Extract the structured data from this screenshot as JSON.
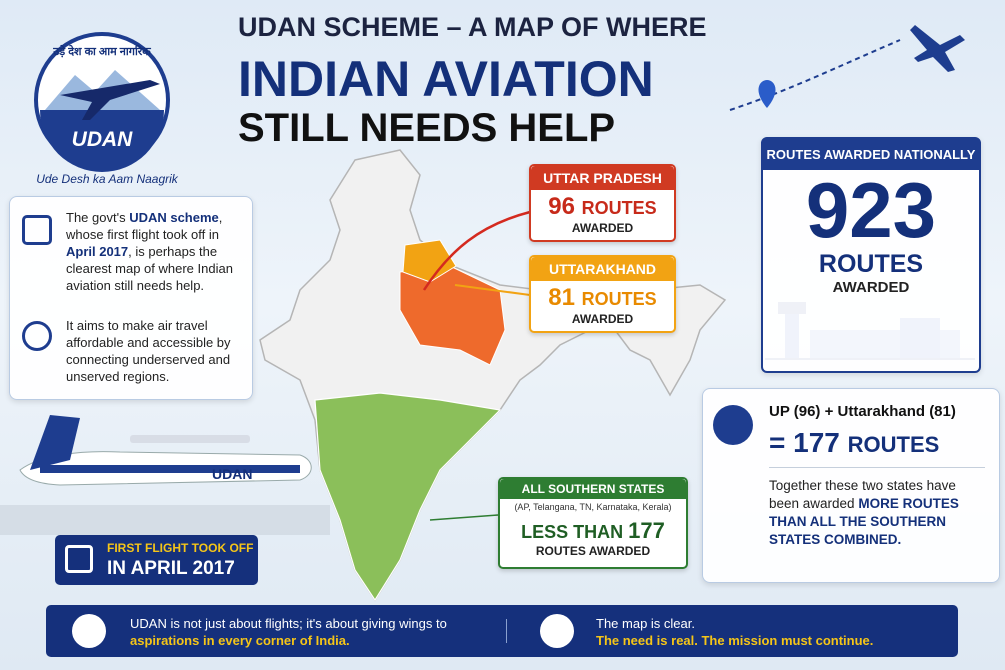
{
  "logo": {
    "hindi": "उड़े देश का आम नागरिक",
    "name": "UDAN",
    "tagline": "Ude Desh ka Aam Naagrik"
  },
  "title": {
    "line1": "UDAN SCHEME – A MAP OF WHERE",
    "line2": "INDIAN AVIATION",
    "line3": "STILL NEEDS HELP"
  },
  "intro": {
    "p1": [
      "The govt's ",
      "UDAN scheme",
      ", whose first flight took off in ",
      "April 2017",
      ", is perhaps the clearest map of where Indian aviation still needs help."
    ],
    "p2": "It aims to make air travel affordable and accessible by connecting underserved and unserved regions."
  },
  "plane_livery": "UDAN",
  "first_flight": {
    "line1": "FIRST FLIGHT TOOK OFF",
    "line2": "IN APRIL 2017"
  },
  "states": [
    {
      "name": "UTTAR PRADESH",
      "routes": 96,
      "unit": "ROUTES",
      "status": "AWARDED"
    },
    {
      "name": "UTTARAKHAND",
      "routes": 81,
      "unit": "ROUTES",
      "status": "AWARDED"
    }
  ],
  "southern": {
    "title": "ALL SOUTHERN STATES",
    "members": "(AP, Telangana, TN, Karnataka, Kerala)",
    "qualifier": "LESS THAN",
    "routes": 177,
    "unit": "ROUTES AWARDED"
  },
  "national": {
    "title": "ROUTES AWARDED NATIONALLY",
    "routes": 923,
    "unit": "ROUTES",
    "status": "AWARDED"
  },
  "comparison": {
    "sum_label": "UP (96) + Uttarakhand (81)",
    "equals": "=",
    "total": 177,
    "unit": "ROUTES",
    "text": [
      "Together these two states have been awarded ",
      "MORE ROUTES THAN ALL THE SOUTHERN STATES COMBINED."
    ]
  },
  "footer": {
    "left": [
      "UDAN is not just about flights; it's about giving wings to ",
      "aspirations in every corner of India."
    ],
    "right": [
      "The map is clear.",
      "The need is real. The mission must continue."
    ]
  }
}
